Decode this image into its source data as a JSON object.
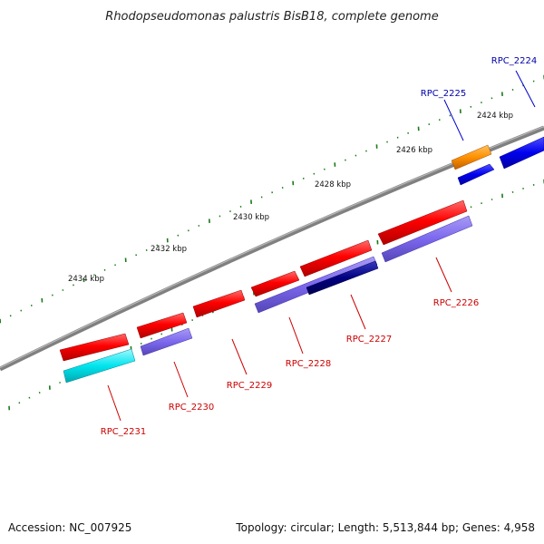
{
  "title": "Rhodopseudomonas palustris BisB18, complete genome",
  "footer": {
    "accession": "Accession: NC_007925",
    "summary": "Topology: circular; Length: 5,513,844 bp; Genes: 4,958"
  },
  "ticks": [
    {
      "label": "2424 kbp"
    },
    {
      "label": "2426 kbp"
    },
    {
      "label": "2428 kbp"
    },
    {
      "label": "2430 kbp"
    },
    {
      "label": "2432 kbp"
    },
    {
      "label": "2434 kbp"
    }
  ],
  "genes": [
    {
      "label": "RPC_2224",
      "strand": "forward",
      "color": "#0000ee"
    },
    {
      "label": "RPC_2225",
      "strand": "forward",
      "color": "#ff8c00"
    },
    {
      "label": "RPC_2226",
      "strand": "reverse",
      "color": "#ee0000"
    },
    {
      "label": "RPC_2227",
      "strand": "reverse",
      "color": "#ee0000"
    },
    {
      "label": "RPC_2228",
      "strand": "reverse",
      "color": "#ee0000"
    },
    {
      "label": "RPC_2229",
      "strand": "reverse",
      "color": "#ee0000"
    },
    {
      "label": "RPC_2230",
      "strand": "reverse",
      "color": "#ee0000"
    },
    {
      "label": "RPC_2231",
      "strand": "reverse",
      "color": "#ee0000"
    }
  ],
  "colors": {
    "backbone": "#808080",
    "tick_marks": "#1a7a1a",
    "forward_label": "#0000aa",
    "reverse_label": "#cc0000",
    "cog_purple": "#7b68ee",
    "cog_navy": "#000080",
    "cog_cyan": "#00e5ee",
    "cog_blue": "#0000ff"
  }
}
